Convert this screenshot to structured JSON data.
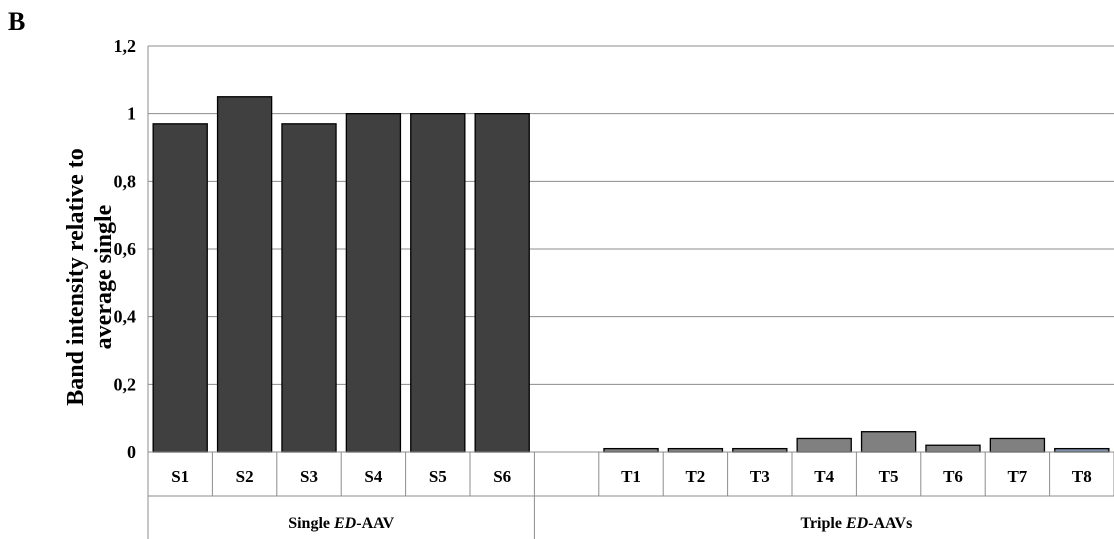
{
  "panel_label": "B",
  "chart_data": {
    "type": "bar",
    "ylabel_lines": [
      "Band intensity relative to",
      "average single"
    ],
    "ylim": [
      0,
      1.2
    ],
    "yticks": [
      "0",
      "0,2",
      "0,4",
      "0,6",
      "0,8",
      "1",
      "1,2"
    ],
    "grid": true,
    "categories": [
      "S1",
      "S2",
      "S3",
      "S4",
      "S5",
      "S6",
      "",
      "T1",
      "T2",
      "T3",
      "T4",
      "T5",
      "T6",
      "T7",
      "T8"
    ],
    "values": [
      0.97,
      1.05,
      0.97,
      1.0,
      1.0,
      1.0,
      null,
      0.01,
      0.01,
      0.01,
      0.04,
      0.06,
      0.02,
      0.04,
      0.01
    ],
    "bar_colors": [
      "#404040",
      "#404040",
      "#404040",
      "#404040",
      "#404040",
      "#404040",
      null,
      "#808080",
      "#808080",
      "#808080",
      "#808080",
      "#808080",
      "#808080",
      "#808080",
      "#7f8fa8"
    ],
    "groups": [
      {
        "label_plain": "Single ",
        "label_italic": "ED",
        "label_rest": "-AAV",
        "span": [
          0,
          6
        ]
      },
      {
        "label_plain": "Triple ",
        "label_italic": "ED",
        "label_rest": "-AAVs",
        "span": [
          7,
          15
        ]
      }
    ]
  }
}
